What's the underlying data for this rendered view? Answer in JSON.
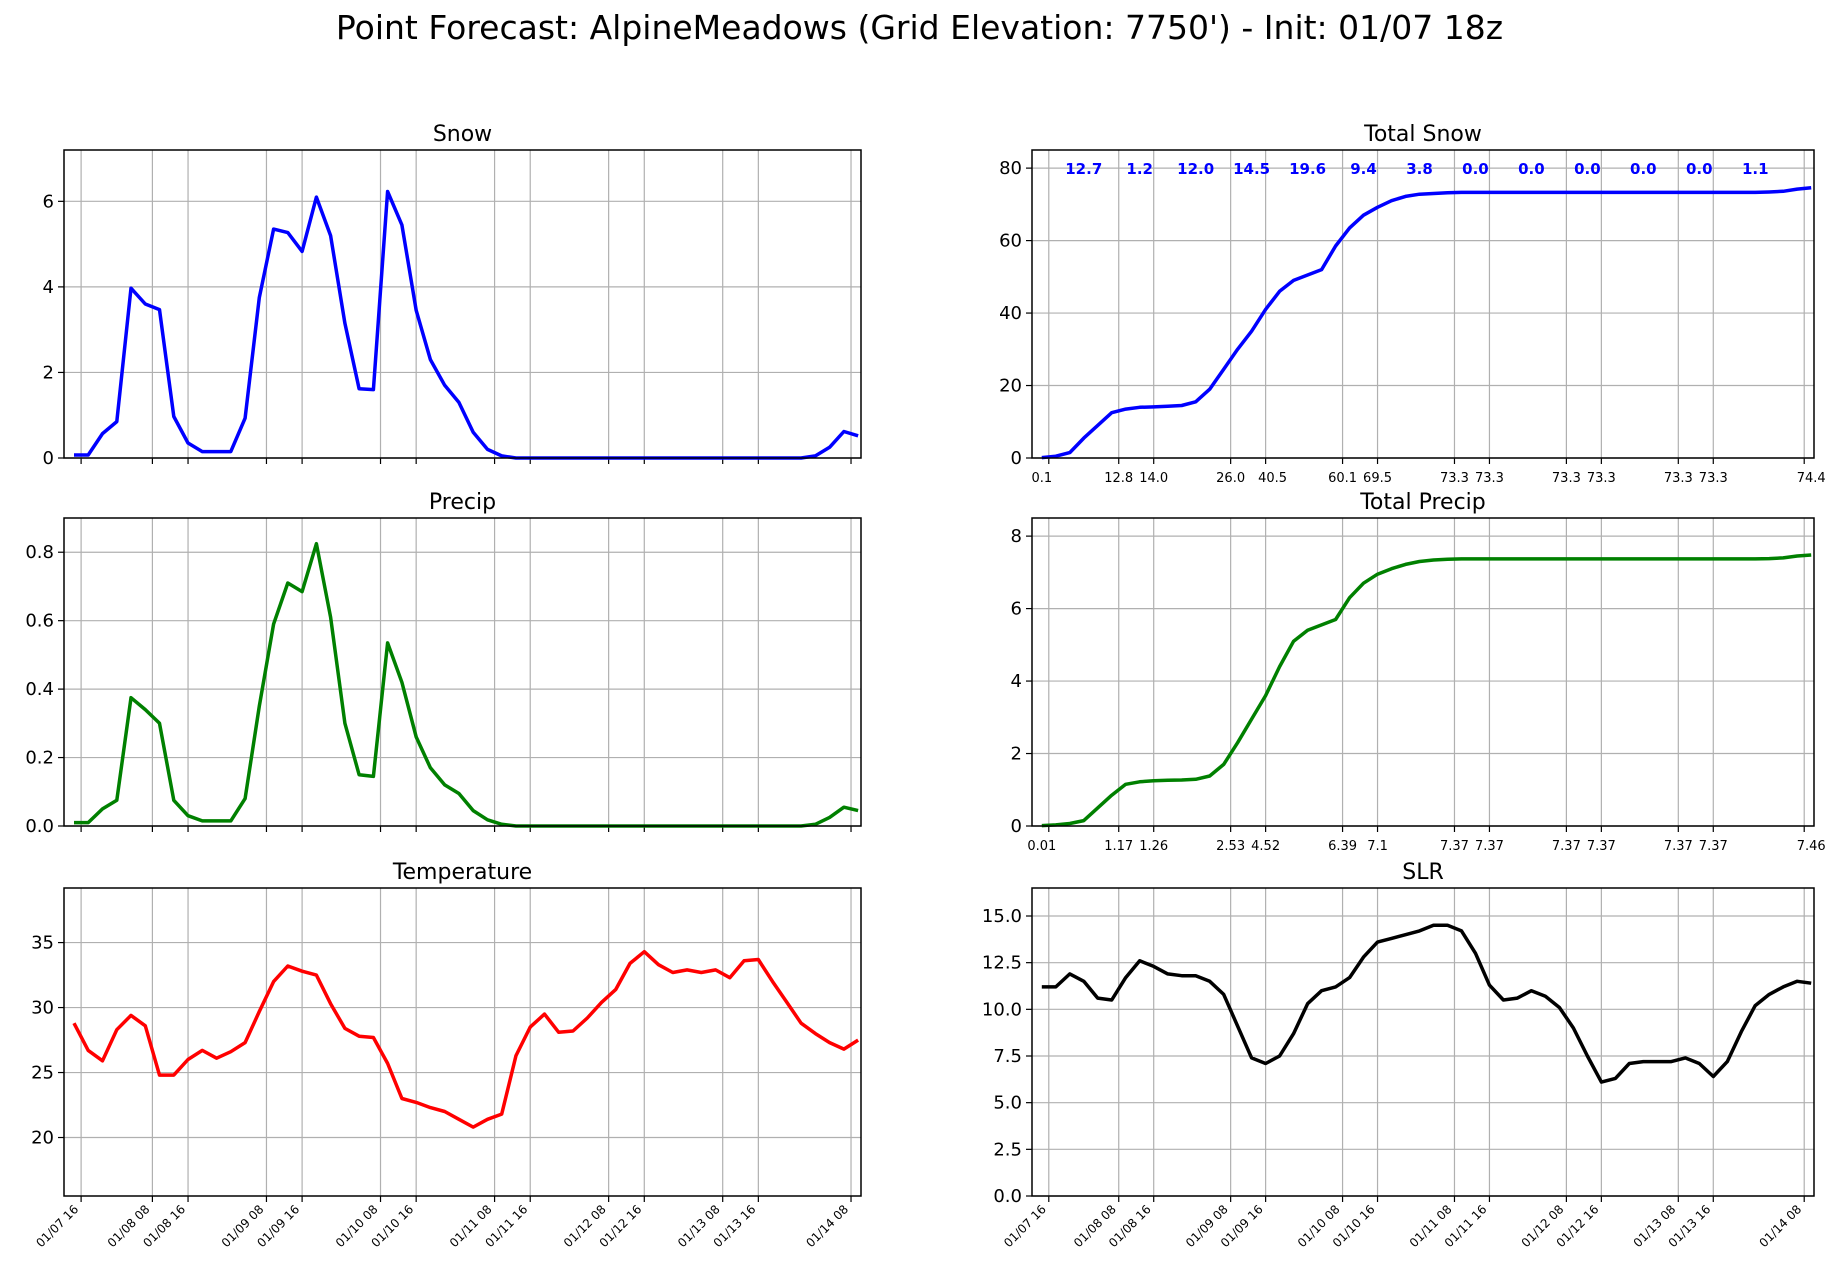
{
  "title": "Point Forecast: AlpineMeadows (Grid Elevation: 7750') - Init: 01/07 18z",
  "time_ticks": [
    "01/07 16",
    "01/08 08",
    "01/08 16",
    "01/09 08",
    "01/09 16",
    "01/10 08",
    "01/10 16",
    "01/11 08",
    "01/11 16",
    "01/12 08",
    "01/12 16",
    "01/13 08",
    "01/13 16",
    "01/14 08"
  ],
  "chart_data": [
    {
      "id": "snow",
      "type": "line",
      "title": "Snow",
      "color": "#0000ff",
      "x": [
        0,
        1,
        2,
        3,
        4,
        5,
        6,
        7,
        8,
        9,
        10,
        11,
        12,
        13,
        14,
        15,
        16,
        17,
        18,
        19,
        20,
        21,
        22,
        23,
        24,
        25,
        26,
        27,
        28,
        29,
        30,
        31,
        32,
        33,
        34,
        35,
        36,
        37,
        38,
        39,
        40,
        41,
        42,
        43,
        44,
        45,
        46,
        47,
        48,
        49,
        50,
        51,
        52,
        53,
        54,
        55
      ],
      "values": [
        0.07,
        0.07,
        0.57,
        0.85,
        3.97,
        3.6,
        3.47,
        0.97,
        0.35,
        0.15,
        0.15,
        0.15,
        0.93,
        3.75,
        5.35,
        5.27,
        4.83,
        6.1,
        5.2,
        3.15,
        1.62,
        1.6,
        6.23,
        5.45,
        3.45,
        2.3,
        1.7,
        1.3,
        0.6,
        0.2,
        0.05,
        0,
        0,
        0,
        0,
        0,
        0,
        0,
        0,
        0,
        0,
        0,
        0,
        0,
        0,
        0,
        0,
        0,
        0,
        0,
        0,
        0,
        0.05,
        0.25,
        0.62,
        0.52
      ],
      "ylim": [
        0,
        7.2
      ],
      "yticks": [
        "0",
        "2",
        "4",
        "6"
      ],
      "ytick_values": [
        0,
        2,
        4,
        6
      ],
      "grid": true,
      "show_xticklabels": false
    },
    {
      "id": "total-snow",
      "type": "line",
      "title": "Total Snow",
      "color": "#0000ff",
      "x": [
        0,
        1,
        2,
        3,
        4,
        5,
        6,
        7,
        8,
        9,
        10,
        11,
        12,
        13,
        14,
        15,
        16,
        17,
        18,
        19,
        20,
        21,
        22,
        23,
        24,
        25,
        26,
        27,
        28,
        29,
        30,
        31,
        32,
        33,
        34,
        35,
        36,
        37,
        38,
        39,
        40,
        41,
        42,
        43,
        44,
        45,
        46,
        47,
        48,
        49,
        50,
        51,
        52,
        53,
        54,
        55
      ],
      "values": [
        0.1,
        0.5,
        1.5,
        5.5,
        9.0,
        12.5,
        13.5,
        14.0,
        14.1,
        14.3,
        14.5,
        15.5,
        19.0,
        24.5,
        30.0,
        35.0,
        41.0,
        46.0,
        49.0,
        50.5,
        52.0,
        58.5,
        63.5,
        67.0,
        69.2,
        71.0,
        72.2,
        72.8,
        73.0,
        73.2,
        73.3,
        73.3,
        73.3,
        73.3,
        73.3,
        73.3,
        73.3,
        73.3,
        73.3,
        73.3,
        73.3,
        73.3,
        73.3,
        73.3,
        73.3,
        73.3,
        73.3,
        73.3,
        73.3,
        73.3,
        73.3,
        73.3,
        73.4,
        73.6,
        74.2,
        74.6
      ],
      "ylim": [
        0,
        85
      ],
      "yticks": [
        "0",
        "20",
        "40",
        "60",
        "80"
      ],
      "ytick_values": [
        0,
        20,
        40,
        60,
        80
      ],
      "grid": true,
      "period_totals": [
        {
          "x": 3,
          "label": "12.7"
        },
        {
          "x": 7,
          "label": "1.2"
        },
        {
          "x": 11,
          "label": "12.0"
        },
        {
          "x": 15,
          "label": "14.5"
        },
        {
          "x": 19,
          "label": "19.6"
        },
        {
          "x": 23,
          "label": "9.4"
        },
        {
          "x": 27,
          "label": "3.8"
        },
        {
          "x": 31,
          "label": "0.0"
        },
        {
          "x": 35,
          "label": "0.0"
        },
        {
          "x": 39,
          "label": "0.0"
        },
        {
          "x": 43,
          "label": "0.0"
        },
        {
          "x": 47,
          "label": "0.0"
        },
        {
          "x": 51,
          "label": "1.1"
        }
      ],
      "cumulative_labels": [
        {
          "x": 0,
          "label": "0.1"
        },
        {
          "x": 5.5,
          "label": "12.8"
        },
        {
          "x": 8,
          "label": "14.0"
        },
        {
          "x": 13.5,
          "label": "26.0"
        },
        {
          "x": 16.5,
          "label": "40.5"
        },
        {
          "x": 21.5,
          "label": "60.1"
        },
        {
          "x": 24,
          "label": "69.5"
        },
        {
          "x": 29.5,
          "label": "73.3"
        },
        {
          "x": 32,
          "label": "73.3"
        },
        {
          "x": 37.5,
          "label": "73.3"
        },
        {
          "x": 40,
          "label": "73.3"
        },
        {
          "x": 45.5,
          "label": "73.3"
        },
        {
          "x": 48,
          "label": "73.3"
        },
        {
          "x": 55,
          "label": "74.4"
        }
      ]
    },
    {
      "id": "precip",
      "type": "line",
      "title": "Precip",
      "color": "#008000",
      "x": [
        0,
        1,
        2,
        3,
        4,
        5,
        6,
        7,
        8,
        9,
        10,
        11,
        12,
        13,
        14,
        15,
        16,
        17,
        18,
        19,
        20,
        21,
        22,
        23,
        24,
        25,
        26,
        27,
        28,
        29,
        30,
        31,
        32,
        33,
        34,
        35,
        36,
        37,
        38,
        39,
        40,
        41,
        42,
        43,
        44,
        45,
        46,
        47,
        48,
        49,
        50,
        51,
        52,
        53,
        54,
        55
      ],
      "values": [
        0.01,
        0.01,
        0.05,
        0.075,
        0.375,
        0.34,
        0.3,
        0.075,
        0.03,
        0.015,
        0.015,
        0.015,
        0.08,
        0.35,
        0.59,
        0.71,
        0.685,
        0.825,
        0.61,
        0.3,
        0.15,
        0.145,
        0.535,
        0.42,
        0.26,
        0.17,
        0.12,
        0.095,
        0.045,
        0.018,
        0.005,
        0,
        0,
        0,
        0,
        0,
        0,
        0,
        0,
        0,
        0,
        0,
        0,
        0,
        0,
        0,
        0,
        0,
        0,
        0,
        0,
        0,
        0.005,
        0.025,
        0.055,
        0.045
      ],
      "ylim": [
        0,
        0.9
      ],
      "yticks": [
        "0.0",
        "0.2",
        "0.4",
        "0.6",
        "0.8"
      ],
      "ytick_values": [
        0,
        0.2,
        0.4,
        0.6,
        0.8
      ],
      "grid": true,
      "show_xticklabels": false
    },
    {
      "id": "total-precip",
      "type": "line",
      "title": "Total Precip",
      "color": "#008000",
      "x": [
        0,
        1,
        2,
        3,
        4,
        5,
        6,
        7,
        8,
        9,
        10,
        11,
        12,
        13,
        14,
        15,
        16,
        17,
        18,
        19,
        20,
        21,
        22,
        23,
        24,
        25,
        26,
        27,
        28,
        29,
        30,
        31,
        32,
        33,
        34,
        35,
        36,
        37,
        38,
        39,
        40,
        41,
        42,
        43,
        44,
        45,
        46,
        47,
        48,
        49,
        50,
        51,
        52,
        53,
        54,
        55
      ],
      "values": [
        0.01,
        0.03,
        0.07,
        0.15,
        0.5,
        0.85,
        1.15,
        1.22,
        1.25,
        1.26,
        1.27,
        1.29,
        1.38,
        1.7,
        2.3,
        2.95,
        3.6,
        4.4,
        5.1,
        5.4,
        5.55,
        5.7,
        6.3,
        6.7,
        6.95,
        7.1,
        7.22,
        7.3,
        7.34,
        7.36,
        7.37,
        7.37,
        7.37,
        7.37,
        7.37,
        7.37,
        7.37,
        7.37,
        7.37,
        7.37,
        7.37,
        7.37,
        7.37,
        7.37,
        7.37,
        7.37,
        7.37,
        7.37,
        7.37,
        7.37,
        7.37,
        7.37,
        7.38,
        7.4,
        7.45,
        7.48
      ],
      "ylim": [
        0,
        8.5
      ],
      "yticks": [
        "0",
        "2",
        "4",
        "6",
        "8"
      ],
      "ytick_values": [
        0,
        2,
        4,
        6,
        8
      ],
      "grid": true,
      "cumulative_labels": [
        {
          "x": 0,
          "label": "0.01"
        },
        {
          "x": 5.5,
          "label": "1.17"
        },
        {
          "x": 8,
          "label": "1.26"
        },
        {
          "x": 13.5,
          "label": "2.53"
        },
        {
          "x": 16,
          "label": "4.52"
        },
        {
          "x": 21.5,
          "label": "6.39"
        },
        {
          "x": 24,
          "label": "7.1"
        },
        {
          "x": 29.5,
          "label": "7.37"
        },
        {
          "x": 32,
          "label": "7.37"
        },
        {
          "x": 37.5,
          "label": "7.37"
        },
        {
          "x": 40,
          "label": "7.37"
        },
        {
          "x": 45.5,
          "label": "7.37"
        },
        {
          "x": 48,
          "label": "7.37"
        },
        {
          "x": 55,
          "label": "7.46"
        }
      ]
    },
    {
      "id": "temperature",
      "type": "line",
      "title": "Temperature",
      "color": "#ff0000",
      "x": [
        0,
        1,
        2,
        3,
        4,
        5,
        6,
        7,
        8,
        9,
        10,
        11,
        12,
        13,
        14,
        15,
        16,
        17,
        18,
        19,
        20,
        21,
        22,
        23,
        24,
        25,
        26,
        27,
        28,
        29,
        30,
        31,
        32,
        33,
        34,
        35,
        36,
        37,
        38,
        39,
        40,
        41,
        42,
        43,
        44,
        45,
        46,
        47,
        48,
        49,
        50,
        51,
        52,
        53,
        54,
        55
      ],
      "values": [
        28.8,
        26.7,
        25.9,
        28.3,
        29.4,
        28.6,
        24.8,
        24.8,
        26.0,
        26.7,
        26.1,
        26.6,
        27.3,
        29.7,
        32.0,
        33.2,
        32.8,
        32.5,
        30.3,
        28.4,
        27.8,
        27.7,
        25.7,
        23.0,
        22.7,
        22.3,
        22.0,
        21.4,
        20.8,
        21.4,
        21.8,
        26.3,
        28.5,
        29.5,
        28.1,
        28.2,
        29.2,
        30.4,
        31.4,
        33.4,
        34.3,
        33.3,
        32.7,
        32.9,
        32.7,
        32.9,
        32.3,
        33.6,
        33.7,
        32.0,
        30.4,
        28.8,
        28.0,
        27.3,
        26.8,
        27.5
      ],
      "ylim": [
        15.5,
        39.2
      ],
      "yticks": [
        "20",
        "25",
        "30",
        "35"
      ],
      "ytick_values": [
        20,
        25,
        30,
        35
      ],
      "grid": true,
      "show_xticklabels": true
    },
    {
      "id": "slr",
      "type": "line",
      "title": "SLR",
      "color": "#000000",
      "x": [
        0,
        1,
        2,
        3,
        4,
        5,
        6,
        7,
        8,
        9,
        10,
        11,
        12,
        13,
        14,
        15,
        16,
        17,
        18,
        19,
        20,
        21,
        22,
        23,
        24,
        25,
        26,
        27,
        28,
        29,
        30,
        31,
        32,
        33,
        34,
        35,
        36,
        37,
        38,
        39,
        40,
        41,
        42,
        43,
        44,
        45,
        46,
        47,
        48,
        49,
        50,
        51,
        52,
        53,
        54,
        55
      ],
      "values": [
        11.2,
        11.2,
        11.9,
        11.5,
        10.6,
        10.5,
        11.7,
        12.6,
        12.3,
        11.9,
        11.8,
        11.8,
        11.5,
        10.8,
        9.1,
        7.4,
        7.1,
        7.5,
        8.7,
        10.3,
        11.0,
        11.2,
        11.7,
        12.8,
        13.6,
        13.8,
        14.0,
        14.2,
        14.5,
        14.5,
        14.2,
        13.0,
        11.3,
        10.5,
        10.6,
        11.0,
        10.7,
        10.1,
        9.0,
        7.5,
        6.1,
        6.3,
        7.1,
        7.2,
        7.2,
        7.2,
        7.4,
        7.1,
        6.4,
        7.2,
        8.8,
        10.2,
        10.8,
        11.2,
        11.5,
        11.4
      ],
      "ylim": [
        0,
        16.5
      ],
      "yticks": [
        "0.0",
        "2.5",
        "5.0",
        "7.5",
        "10.0",
        "12.5",
        "15.0"
      ],
      "ytick_values": [
        0,
        2.5,
        5,
        7.5,
        10,
        12.5,
        15
      ],
      "grid": true,
      "show_xticklabels": true
    }
  ]
}
